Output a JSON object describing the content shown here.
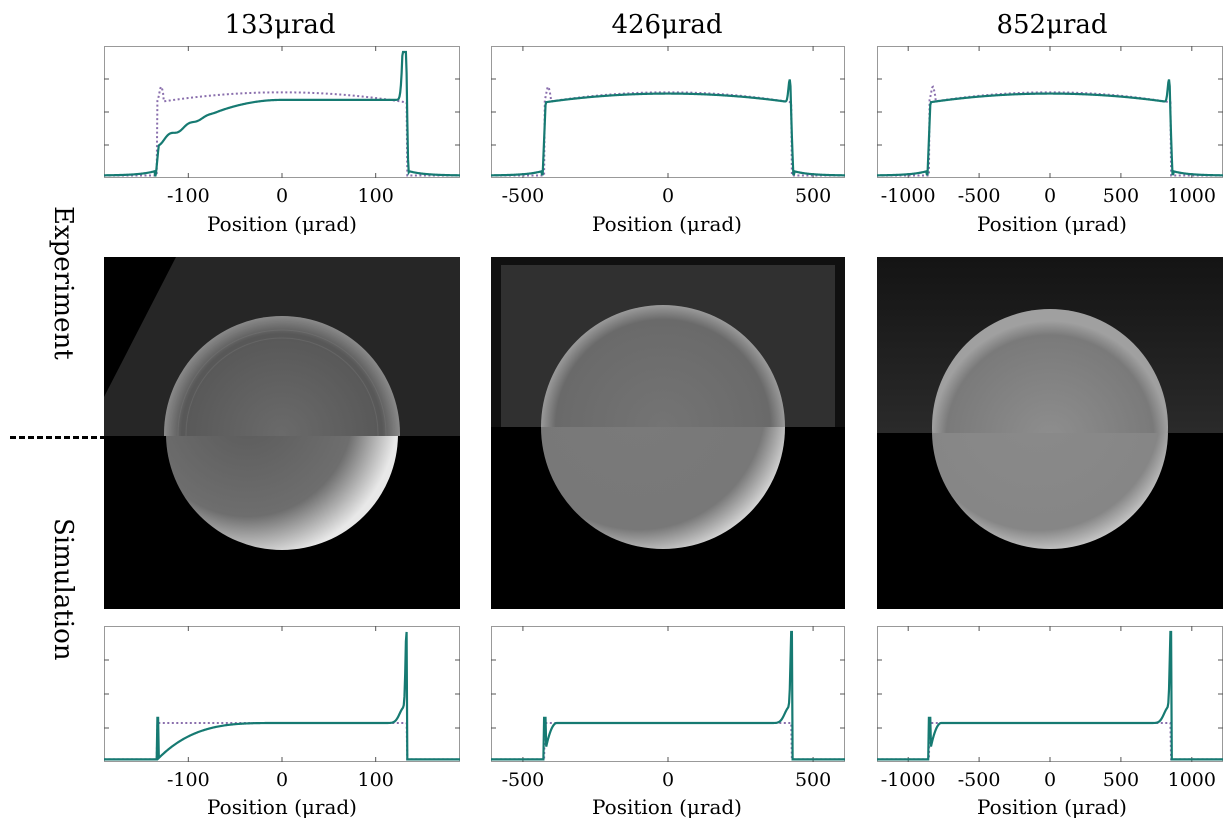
{
  "columns": [
    {
      "title": "133μrad",
      "top_plot": {
        "xlabel": "Position (μrad)",
        "xlim": [
          -190,
          190
        ],
        "xticks": [
          -100,
          0,
          100
        ],
        "tick_labels": [
          "-100",
          "0",
          "100"
        ]
      },
      "bottom_plot": {
        "xlabel": "Position (μrad)",
        "xlim": [
          -190,
          190
        ],
        "xticks": [
          -100,
          0,
          100
        ],
        "tick_labels": [
          "-100",
          "0",
          "100"
        ]
      }
    },
    {
      "title": "426μrad",
      "top_plot": {
        "xlabel": "Position (μrad)",
        "xlim": [
          -610,
          610
        ],
        "xticks": [
          -500,
          0,
          500
        ],
        "tick_labels": [
          "-500",
          "0",
          "500"
        ]
      },
      "bottom_plot": {
        "xlabel": "Position (μrad)",
        "xlim": [
          -610,
          610
        ],
        "xticks": [
          -500,
          0,
          500
        ],
        "tick_labels": [
          "-500",
          "0",
          "500"
        ]
      }
    },
    {
      "title": "852μrad",
      "top_plot": {
        "xlabel": "Position (μrad)",
        "xlim": [
          -1220,
          1220
        ],
        "xticks": [
          -1000,
          -500,
          0,
          500,
          1000
        ],
        "tick_labels": [
          "-1000",
          "-500",
          "0",
          "500",
          "1000"
        ]
      },
      "bottom_plot": {
        "xlabel": "Position (μrad)",
        "xlim": [
          -1220,
          1220
        ],
        "xticks": [
          -1000,
          -500,
          0,
          500,
          1000
        ],
        "tick_labels": [
          "-1000",
          "-500",
          "0",
          "500",
          "1000"
        ]
      }
    }
  ],
  "row_labels": {
    "experiment": "Experiment",
    "simulation": "Simulation"
  },
  "colors": {
    "measured": "#167a72",
    "reference": "#8a6fad",
    "background": "#000000"
  },
  "chart_data": [
    {
      "type": "line",
      "panel": "top-133",
      "radius": 133,
      "xlim": [
        -190,
        190
      ]
    },
    {
      "type": "line",
      "panel": "top-426",
      "radius": 426,
      "xlim": [
        -610,
        610
      ]
    },
    {
      "type": "line",
      "panel": "top-852",
      "radius": 852,
      "xlim": [
        -1220,
        1220
      ]
    },
    {
      "type": "line",
      "panel": "bottom-133",
      "radius": 133,
      "xlim": [
        -190,
        190
      ]
    },
    {
      "type": "line",
      "panel": "bottom-426",
      "radius": 426,
      "xlim": [
        -610,
        610
      ]
    },
    {
      "type": "line",
      "panel": "bottom-852",
      "radius": 852,
      "xlim": [
        -1220,
        1220
      ]
    }
  ]
}
